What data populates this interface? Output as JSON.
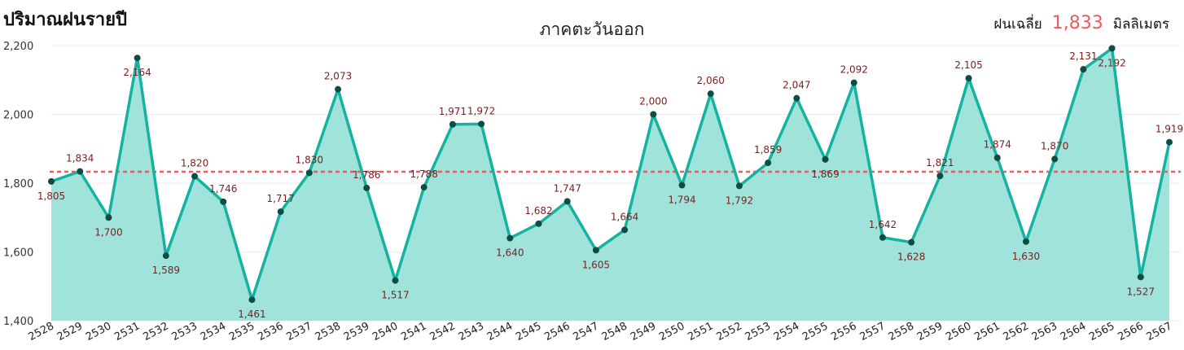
{
  "header": {
    "title": "ปริมาณฝนรายปี",
    "region": "ภาคตะวันออก",
    "avg_label": "ฝนเฉลี่ย",
    "avg_value": "1,833",
    "avg_unit": "มิลลิเมตร"
  },
  "colors": {
    "line": "#14b3a1",
    "area": "#9fe3da",
    "marker": "#0d4d44",
    "average_line": "#f05a5a",
    "label": "#7a1f1f"
  },
  "chart_data": {
    "type": "area",
    "categories": [
      "2528",
      "2529",
      "2530",
      "2531",
      "2532",
      "2533",
      "2534",
      "2535",
      "2536",
      "2537",
      "2538",
      "2539",
      "2540",
      "2541",
      "2542",
      "2543",
      "2544",
      "2545",
      "2546",
      "2547",
      "2548",
      "2549",
      "2550",
      "2551",
      "2552",
      "2553",
      "2554",
      "2555",
      "2556",
      "2557",
      "2558",
      "2559",
      "2560",
      "2561",
      "2562",
      "2563",
      "2564",
      "2565",
      "2566",
      "2567"
    ],
    "values": [
      1805,
      1834,
      1700,
      2164,
      1589,
      1820,
      1746,
      1461,
      1717,
      1830,
      2073,
      1786,
      1517,
      1788,
      1971,
      1972,
      1640,
      1682,
      1747,
      1605,
      1664,
      2000,
      1794,
      2060,
      1792,
      1859,
      2047,
      1869,
      2092,
      1642,
      1628,
      1821,
      2105,
      1874,
      1630,
      1870,
      2131,
      2192,
      1527,
      1919
    ],
    "value_labels": [
      "1,805",
      "1,834",
      "1,700",
      "2,164",
      "1,589",
      "1,820",
      "1,746",
      "1,461",
      "1,717",
      "1,830",
      "2,073",
      "1,786",
      "1,517",
      "1,788",
      "1,971",
      "1,972",
      "1,640",
      "1,682",
      "1,747",
      "1,605",
      "1,664",
      "2,000",
      "1,794",
      "2,060",
      "1,792",
      "1,859",
      "2,047",
      "1,869",
      "2,092",
      "1,642",
      "1,628",
      "1,821",
      "2,105",
      "1,874",
      "1,630",
      "1,870",
      "2,131",
      "2,192",
      "1,527",
      "1,919"
    ],
    "label_position": [
      "below",
      "above",
      "below",
      "below",
      "below",
      "above",
      "above",
      "below",
      "above",
      "above",
      "above",
      "above",
      "below",
      "above",
      "above",
      "above",
      "below",
      "above",
      "above",
      "below",
      "above",
      "above",
      "below",
      "above",
      "below",
      "above",
      "above",
      "below",
      "above",
      "above",
      "below",
      "above",
      "above",
      "above",
      "below",
      "above",
      "above",
      "below",
      "below",
      "above"
    ],
    "average": 1833,
    "ylim": [
      1400,
      2200
    ],
    "yticks": [
      1400,
      1600,
      1800,
      2000,
      2200
    ],
    "ytick_labels": [
      "1,400",
      "1,600",
      "1,800",
      "2,000",
      "2,200"
    ],
    "grid": true
  }
}
